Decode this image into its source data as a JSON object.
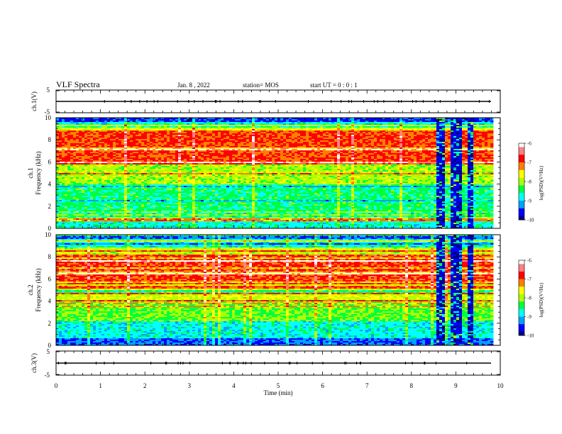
{
  "header": {
    "title": "VLF Spectra",
    "date": "Jan. 8 , 2022",
    "station": "station= MOS",
    "start": "start UT =  0 : 0 : 1"
  },
  "colors": {
    "colormap": [
      "#000080",
      "#0000ff",
      "#00a0ff",
      "#00ffff",
      "#00ff40",
      "#b0ff00",
      "#ffff00",
      "#ff8000",
      "#ff0000",
      "#ff8080",
      "#ffffff"
    ]
  },
  "chart_data": [
    {
      "type": "line",
      "name": "ch1-waveform",
      "ylabel": "ch.1(V)",
      "ylim": [
        -5,
        5
      ],
      "yticks": [
        "5",
        "-5"
      ],
      "xlim": [
        0,
        10
      ],
      "y": 0
    },
    {
      "type": "heatmap",
      "name": "ch1-spectrogram",
      "ylabel_line1": "ch.1",
      "ylabel_line2": "Frequency (kHz)",
      "ylim": [
        0,
        10
      ],
      "yticks": [
        "0",
        "2",
        "4",
        "6",
        "8",
        "10"
      ],
      "xlim": [
        0,
        10
      ],
      "colorbar": {
        "label": "log(PSD)(V²/Hz)",
        "range": [
          -10,
          -6
        ],
        "ticks": [
          "-6",
          "-7",
          "-8",
          "-9",
          "-10"
        ]
      },
      "dropout_minutes": [
        [
          8.55,
          8.75
        ],
        [
          8.85,
          9.1
        ],
        [
          9.22,
          9.35
        ]
      ]
    },
    {
      "type": "heatmap",
      "name": "ch2-spectrogram",
      "ylabel_line1": "ch.2",
      "ylabel_line2": "Frequency (kHz)",
      "ylim": [
        0,
        10
      ],
      "yticks": [
        "0",
        "2",
        "4",
        "6",
        "8",
        "10"
      ],
      "xlim": [
        0,
        10
      ],
      "colorbar": {
        "label": "log(PSD)(V²/Hz)",
        "range": [
          -10,
          -6
        ],
        "ticks": [
          "-6",
          "-7",
          "-8",
          "-9",
          "-10"
        ]
      },
      "dropout_minutes": [
        [
          8.55,
          8.75
        ],
        [
          8.85,
          9.1
        ],
        [
          9.22,
          9.35
        ]
      ]
    },
    {
      "type": "line",
      "name": "ch3-waveform",
      "ylabel": "ch.3(V)",
      "ylim": [
        -5,
        5
      ],
      "yticks": [
        "5",
        "-5"
      ],
      "xlim": [
        0,
        10
      ],
      "y": 0
    }
  ],
  "xaxis": {
    "label": "Time (min)",
    "ticks": [
      "0",
      "1",
      "2",
      "3",
      "4",
      "5",
      "6",
      "7",
      "8",
      "9",
      "10"
    ]
  }
}
